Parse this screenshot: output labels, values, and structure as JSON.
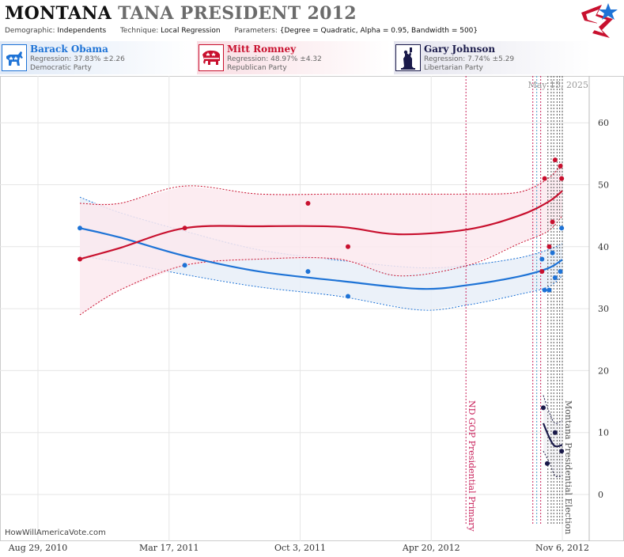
{
  "header": {
    "state": "MONTANA",
    "rest": "TANA PRESIDENT 2012",
    "demographic_label": "Demographic:",
    "demographic_value": "Independents",
    "technique_label": "Technique:",
    "technique_value": "Local Regression",
    "parameters_label": "Parameters:",
    "parameters_value": "{Degree = Quadratic, Alpha = 0.95, Bandwidth = 500}"
  },
  "candidates": [
    {
      "name": "Barack Obama",
      "regression": "Regression: 37.83% ±2.26",
      "party": "Democratic Party",
      "color": "#1e73d6",
      "icon": "donkey-icon"
    },
    {
      "name": "Mitt Romney",
      "regression": "Regression: 48.97% ±4.32",
      "party": "Republican Party",
      "color": "#c8102e",
      "icon": "elephant-icon"
    },
    {
      "name": "Gary Johnson",
      "regression": "Regression: 7.74% ±5.29",
      "party": "Libertarian Party",
      "color": "#1a1a4a",
      "icon": "liberty-statue-icon"
    }
  ],
  "footer": "HowWillAmericaVote.com",
  "chart_data": {
    "type": "line",
    "date_stamp": "May 15, 2025",
    "x_tick_labels": [
      "Aug 29, 2010",
      "Mar 17, 2011",
      "Oct 3, 2011",
      "Apr 20, 2012",
      "Nov 6, 2012"
    ],
    "x_tick_dates": [
      "2010-08-29",
      "2011-03-17",
      "2011-10-03",
      "2012-04-20",
      "2012-11-06"
    ],
    "xlim": [
      "2010-08-29",
      "2012-11-20"
    ],
    "y_ticks": [
      0,
      10,
      20,
      30,
      40,
      50,
      60
    ],
    "ylim": [
      -5,
      67
    ],
    "grid": true,
    "events": [
      {
        "label": "ND GOP Presidential Primary",
        "date": "2012-06-12",
        "color": "#c8205a"
      },
      {
        "label": "Montana Presidential Election",
        "date": "2012-11-06",
        "color": "#555555"
      }
    ],
    "poll_lines": [
      {
        "date": "2012-09-22",
        "color": "#c8205a"
      },
      {
        "date": "2012-09-28",
        "color": "#4aa0c8"
      },
      {
        "date": "2012-10-04",
        "color": "#c8205a"
      },
      {
        "date": "2012-10-15",
        "color": "#555555"
      },
      {
        "date": "2012-10-20",
        "color": "#555555"
      },
      {
        "date": "2012-10-24",
        "color": "#555555"
      },
      {
        "date": "2012-10-29",
        "color": "#555555"
      },
      {
        "date": "2012-11-02",
        "color": "#555555"
      }
    ],
    "series": [
      {
        "name": "Barack Obama",
        "color": "#1e73d6",
        "band_fill": "#e8eef8",
        "points": [
          [
            "2010-11-01",
            43
          ],
          [
            "2011-04-10",
            37
          ],
          [
            "2011-10-15",
            36
          ],
          [
            "2011-12-15",
            32
          ],
          [
            "2012-10-06",
            38
          ],
          [
            "2012-10-10",
            33
          ],
          [
            "2012-10-17",
            33
          ],
          [
            "2012-10-22",
            39
          ],
          [
            "2012-10-26",
            35
          ],
          [
            "2012-11-03",
            36
          ],
          [
            "2012-11-05",
            43
          ]
        ],
        "fit": [
          [
            "2010-11-01",
            43
          ],
          [
            "2011-01-01",
            41.5
          ],
          [
            "2011-04-10",
            38.5
          ],
          [
            "2011-08-01",
            36
          ],
          [
            "2011-12-01",
            34.5
          ],
          [
            "2012-04-01",
            33.2
          ],
          [
            "2012-06-15",
            33.8
          ],
          [
            "2012-09-01",
            35.2
          ],
          [
            "2012-10-15",
            36.5
          ],
          [
            "2012-11-06",
            37.9
          ]
        ],
        "upper": [
          [
            "2010-11-01",
            48
          ],
          [
            "2011-01-01",
            45.5
          ],
          [
            "2011-04-10",
            42.5
          ],
          [
            "2011-08-01",
            39.5
          ],
          [
            "2011-12-01",
            37.8
          ],
          [
            "2012-04-01",
            36.6
          ],
          [
            "2012-06-15",
            37
          ],
          [
            "2012-09-01",
            38.2
          ],
          [
            "2012-10-15",
            39.5
          ],
          [
            "2012-11-06",
            40.5
          ]
        ],
        "lower": [
          [
            "2010-11-01",
            38.5
          ],
          [
            "2011-01-01",
            37.5
          ],
          [
            "2011-04-10",
            35.5
          ],
          [
            "2011-08-01",
            33.5
          ],
          [
            "2011-12-01",
            32
          ],
          [
            "2012-04-01",
            29.8
          ],
          [
            "2012-06-15",
            30.6
          ],
          [
            "2012-09-01",
            32.3
          ],
          [
            "2012-10-15",
            33.5
          ],
          [
            "2012-11-06",
            35.3
          ]
        ]
      },
      {
        "name": "Mitt Romney",
        "color": "#c8102e",
        "band_fill": "#fbe9ee",
        "points": [
          [
            "2010-11-01",
            38
          ],
          [
            "2011-04-10",
            43
          ],
          [
            "2011-10-15",
            47
          ],
          [
            "2011-12-15",
            40
          ],
          [
            "2012-10-06",
            36
          ],
          [
            "2012-10-10",
            51
          ],
          [
            "2012-10-17",
            40
          ],
          [
            "2012-10-22",
            44
          ],
          [
            "2012-10-26",
            54
          ],
          [
            "2012-11-03",
            53
          ],
          [
            "2012-11-05",
            51
          ]
        ],
        "fit": [
          [
            "2010-11-01",
            38
          ],
          [
            "2011-01-01",
            39.8
          ],
          [
            "2011-04-10",
            43
          ],
          [
            "2011-08-01",
            43.3
          ],
          [
            "2011-12-01",
            43.2
          ],
          [
            "2012-03-01",
            42
          ],
          [
            "2012-06-15",
            42.8
          ],
          [
            "2012-09-01",
            45
          ],
          [
            "2012-10-15",
            47.2
          ],
          [
            "2012-11-06",
            49
          ]
        ],
        "upper": [
          [
            "2010-11-01",
            47
          ],
          [
            "2011-01-01",
            47
          ],
          [
            "2011-04-10",
            49.8
          ],
          [
            "2011-08-01",
            48.5
          ],
          [
            "2011-12-01",
            48.5
          ],
          [
            "2012-03-01",
            48.5
          ],
          [
            "2012-06-15",
            48.5
          ],
          [
            "2012-09-01",
            48.8
          ],
          [
            "2012-10-15",
            51
          ],
          [
            "2012-11-06",
            53.5
          ]
        ],
        "lower": [
          [
            "2010-11-01",
            29
          ],
          [
            "2011-01-01",
            33
          ],
          [
            "2011-04-10",
            37
          ],
          [
            "2011-08-01",
            38
          ],
          [
            "2011-12-01",
            38
          ],
          [
            "2012-03-01",
            35.3
          ],
          [
            "2012-06-15",
            37
          ],
          [
            "2012-09-01",
            40.5
          ],
          [
            "2012-10-15",
            42.5
          ],
          [
            "2012-11-06",
            45
          ]
        ]
      },
      {
        "name": "Gary Johnson",
        "color": "#1a1a4a",
        "band_fill": "#f2f2f6",
        "points": [
          [
            "2012-10-08",
            14
          ],
          [
            "2012-10-14",
            5
          ],
          [
            "2012-10-26",
            10
          ],
          [
            "2012-11-05",
            7
          ]
        ],
        "fit": [
          [
            "2012-10-08",
            11.5
          ],
          [
            "2012-10-18",
            9
          ],
          [
            "2012-10-26",
            7.8
          ],
          [
            "2012-11-06",
            8
          ]
        ],
        "upper": [
          [
            "2012-10-08",
            16
          ],
          [
            "2012-10-18",
            13
          ],
          [
            "2012-10-26",
            11.5
          ],
          [
            "2012-11-06",
            12
          ]
        ],
        "lower": [
          [
            "2012-10-08",
            7
          ],
          [
            "2012-10-18",
            5
          ],
          [
            "2012-10-26",
            3
          ],
          [
            "2012-11-06",
            3
          ]
        ]
      }
    ]
  }
}
